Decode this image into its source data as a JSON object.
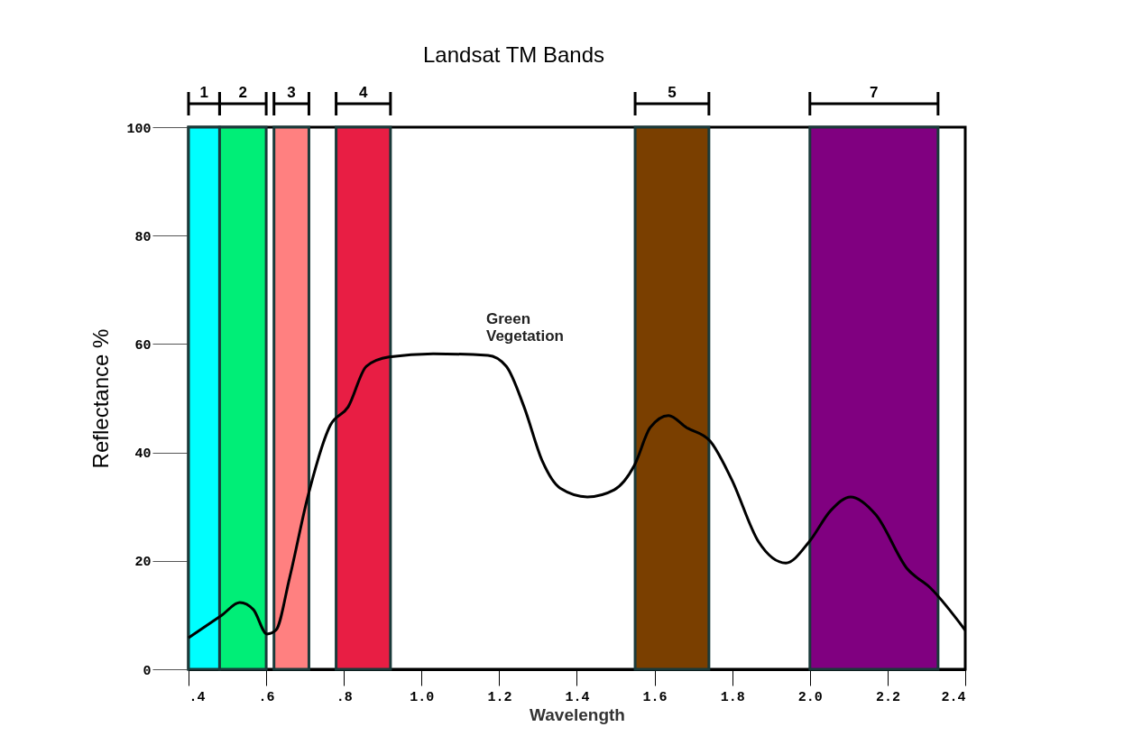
{
  "chart_data": {
    "type": "line",
    "title": "Landsat TM Bands",
    "xlabel": "Wavelength",
    "ylabel": "Reflectance %",
    "x": [
      0.4,
      0.486,
      0.532,
      0.567,
      0.602,
      0.625,
      0.66,
      0.707,
      0.765,
      0.811,
      0.858,
      0.916,
      1.03,
      1.171,
      1.218,
      1.264,
      1.311,
      1.357,
      1.427,
      1.496,
      1.548,
      1.589,
      1.636,
      1.682,
      1.743,
      1.798,
      1.868,
      1.938,
      1.998,
      2.054,
      2.105,
      2.17,
      2.251,
      2.309,
      2.4
    ],
    "series": [
      {
        "color": "#000000",
        "values": [
          5.8,
          10,
          12.3,
          11,
          6.5,
          7.2,
          16.8,
          31.8,
          45,
          48.4,
          55.9,
          57.6,
          58.2,
          57.9,
          55.9,
          48.4,
          38.4,
          33.4,
          31.8,
          33.1,
          37.6,
          44.6,
          46.8,
          44.6,
          42.1,
          35.1,
          23.5,
          19.6,
          23.5,
          29.3,
          31.8,
          28.5,
          18.5,
          15.1,
          7.2
        ]
      }
    ],
    "xlim": [
      0.4,
      2.4
    ],
    "ylim": [
      0,
      100
    ],
    "xticks": [
      {
        "value": 0.4,
        "label": ".4"
      },
      {
        "value": 0.6,
        "label": ".6"
      },
      {
        "value": 0.8,
        "label": ".8"
      },
      {
        "value": 1.0,
        "label": "1.0"
      },
      {
        "value": 1.2,
        "label": "1.2"
      },
      {
        "value": 1.4,
        "label": "1.4"
      },
      {
        "value": 1.6,
        "label": "1.6"
      },
      {
        "value": 1.8,
        "label": "1.8"
      },
      {
        "value": 2.0,
        "label": "2.0"
      },
      {
        "value": 2.2,
        "label": "2.2"
      },
      {
        "value": 2.4,
        "label": "2.4"
      }
    ],
    "yticks": [
      0,
      20,
      40,
      60,
      80,
      100
    ],
    "bands": [
      {
        "axis": "x",
        "from": 0.4,
        "to": 0.48,
        "label": "1",
        "color": "#00ffff"
      },
      {
        "axis": "x",
        "from": 0.48,
        "to": 0.6,
        "label": "2",
        "color": "#00ee77"
      },
      {
        "axis": "x",
        "from": 0.62,
        "to": 0.71,
        "label": "3",
        "color": "#ff8080"
      },
      {
        "axis": "x",
        "from": 0.78,
        "to": 0.92,
        "label": "4",
        "color": "#e81e44"
      },
      {
        "axis": "x",
        "from": 1.55,
        "to": 1.74,
        "label": "5",
        "color": "#7a3f00"
      },
      {
        "axis": "x",
        "from": 2.0,
        "to": 2.33,
        "label": "7",
        "color": "#800080"
      }
    ],
    "annotations": [
      "Green Vegetation"
    ],
    "grid": false,
    "marker": "none",
    "line_style": "solid"
  }
}
